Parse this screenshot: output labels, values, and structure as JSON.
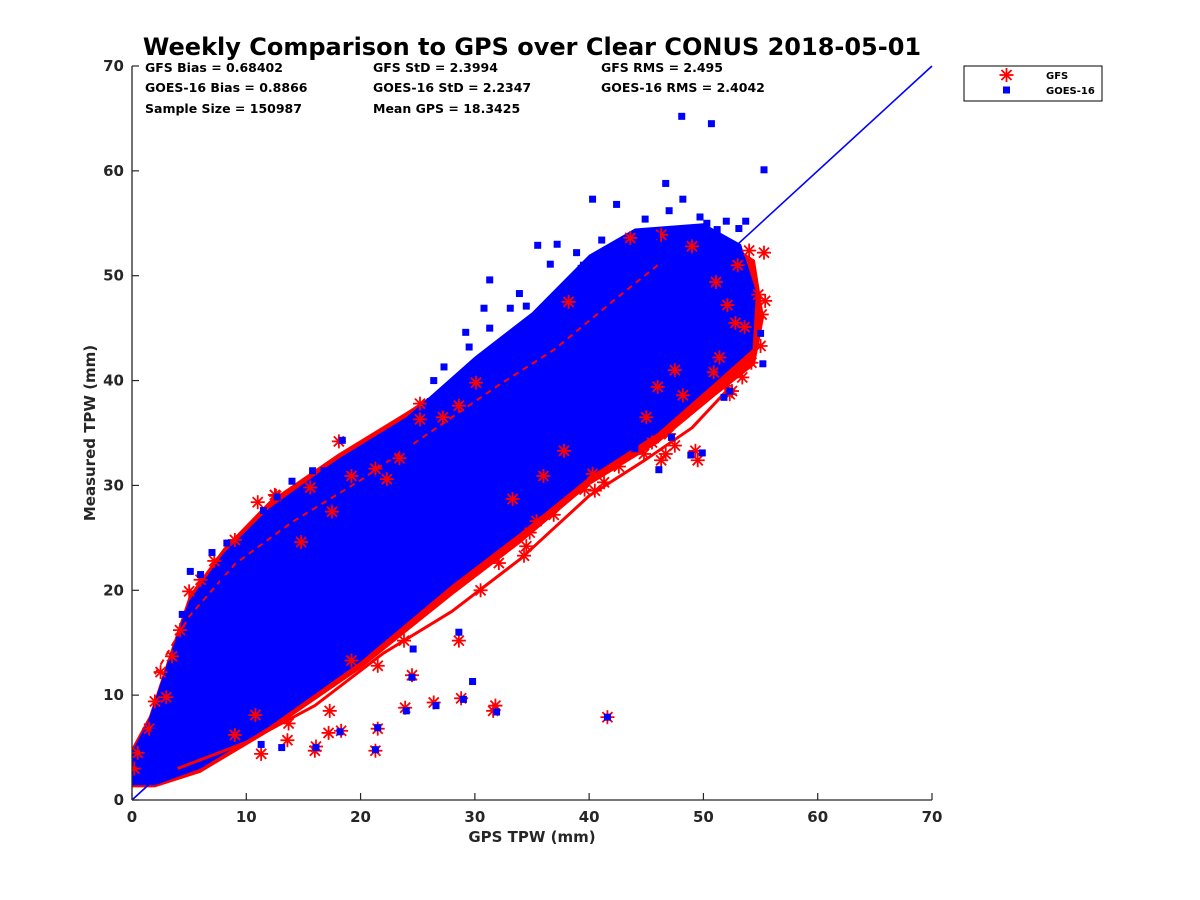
{
  "chart_data": {
    "type": "scatter",
    "title": "Weekly Comparison to GPS over Clear CONUS 2018-05-01",
    "xlabel": "GPS TPW (mm)",
    "ylabel": "Measured TPW (mm)",
    "xlim": [
      0,
      70
    ],
    "ylim": [
      0,
      70
    ],
    "xticks": [
      "0",
      "10",
      "20",
      "30",
      "40",
      "50",
      "60",
      "70"
    ],
    "yticks": [
      "0",
      "10",
      "20",
      "30",
      "40",
      "50",
      "60",
      "70"
    ],
    "stats": [
      [
        "GFS Bias = 0.68402",
        "GFS StD = 2.3994",
        "GFS RMS = 2.495"
      ],
      [
        "GOES-16 Bias = 0.8866",
        "GOES-16 StD = 2.2347",
        "GOES-16 RMS = 2.4042"
      ],
      [
        "Sample Size = 150987",
        "Mean GPS = 18.3425",
        ""
      ]
    ],
    "legend": {
      "placement": "outside-top-right",
      "entries": [
        "GFS",
        "GOES-16"
      ]
    },
    "one_to_one_line": {
      "from": [
        0,
        0
      ],
      "to": [
        70,
        70
      ],
      "color": "#0000ff"
    },
    "series": [
      {
        "name": "GFS",
        "marker": "asterisk",
        "color": "#ff0000",
        "points": [
          [
            18.1,
            34.2
          ],
          [
            25.2,
            37.8
          ],
          [
            25.2,
            36.3
          ],
          [
            11.0,
            28.4
          ],
          [
            12.6,
            29.0
          ],
          [
            15.6,
            29.8
          ],
          [
            28.6,
            37.6
          ],
          [
            21.3,
            31.6
          ],
          [
            7.2,
            22.8
          ],
          [
            5.0,
            19.9
          ],
          [
            2.0,
            9.4
          ],
          [
            3.0,
            9.8
          ],
          [
            1.5,
            6.8
          ],
          [
            0.5,
            4.5
          ],
          [
            0.2,
            3.0
          ],
          [
            12.5,
            29.1
          ],
          [
            14.8,
            24.6
          ],
          [
            17.5,
            27.5
          ],
          [
            19.2,
            30.9
          ],
          [
            22.3,
            30.6
          ],
          [
            24.5,
            11.9
          ],
          [
            26.4,
            9.3
          ],
          [
            28.8,
            9.7
          ],
          [
            31.8,
            9.0
          ],
          [
            31.6,
            8.5
          ],
          [
            28.6,
            15.2
          ],
          [
            21.5,
            12.8
          ],
          [
            18.3,
            6.6
          ],
          [
            17.2,
            6.4
          ],
          [
            17.3,
            8.5
          ],
          [
            16.0,
            4.7
          ],
          [
            16.1,
            5.1
          ],
          [
            21.3,
            4.7
          ],
          [
            21.5,
            6.8
          ],
          [
            23.9,
            8.8
          ],
          [
            11.3,
            4.4
          ],
          [
            13.6,
            5.7
          ],
          [
            13.7,
            7.3
          ],
          [
            10.8,
            8.1
          ],
          [
            9.0,
            6.2
          ],
          [
            23.8,
            15.2
          ],
          [
            19.2,
            13.3
          ],
          [
            32.1,
            22.6
          ],
          [
            34.3,
            23.3
          ],
          [
            34.5,
            24.2
          ],
          [
            34.8,
            25.5
          ],
          [
            35.4,
            26.6
          ],
          [
            36.9,
            27.2
          ],
          [
            39.6,
            29.6
          ],
          [
            40.5,
            29.5
          ],
          [
            40.3,
            31.1
          ],
          [
            41.3,
            30.3
          ],
          [
            42.6,
            31.8
          ],
          [
            44.8,
            33.0
          ],
          [
            45.5,
            34.1
          ],
          [
            46.3,
            32.4
          ],
          [
            46.7,
            33.0
          ],
          [
            47.5,
            33.8
          ],
          [
            49.5,
            32.4
          ],
          [
            49.3,
            33.3
          ],
          [
            47.0,
            34.9
          ],
          [
            52.3,
            38.7
          ],
          [
            52.5,
            39.0
          ],
          [
            51.9,
            39.5
          ],
          [
            53.4,
            40.3
          ],
          [
            54.2,
            41.7
          ],
          [
            55.0,
            43.3
          ],
          [
            55.1,
            46.3
          ],
          [
            55.4,
            47.6
          ],
          [
            54.8,
            48.2
          ],
          [
            55.3,
            52.2
          ],
          [
            54.0,
            52.4
          ],
          [
            53.0,
            51.0
          ],
          [
            51.1,
            49.4
          ],
          [
            52.8,
            45.5
          ],
          [
            52.1,
            47.2
          ],
          [
            53.6,
            45.1
          ],
          [
            50.9,
            40.8
          ],
          [
            48.2,
            38.6
          ],
          [
            41.6,
            7.9
          ],
          [
            33.3,
            28.7
          ],
          [
            36.0,
            30.9
          ],
          [
            37.8,
            33.3
          ],
          [
            45.0,
            36.5
          ],
          [
            46.0,
            39.4
          ],
          [
            47.5,
            41.0
          ],
          [
            51.4,
            42.2
          ],
          [
            43.6,
            53.6
          ],
          [
            46.3,
            53.9
          ],
          [
            49.0,
            52.8
          ],
          [
            38.2,
            47.5
          ],
          [
            30.1,
            39.8
          ],
          [
            27.2,
            36.5
          ],
          [
            23.4,
            32.6
          ],
          [
            9.0,
            24.8
          ],
          [
            6.0,
            21.0
          ],
          [
            4.2,
            16.2
          ],
          [
            2.5,
            12.2
          ],
          [
            3.5,
            13.7
          ],
          [
            30.5,
            20.0
          ]
        ]
      },
      {
        "name": "GOES-16",
        "marker": "square",
        "color": "#0000ff",
        "points": [
          [
            48.1,
            65.2
          ],
          [
            50.7,
            64.5
          ],
          [
            55.3,
            60.1
          ],
          [
            46.7,
            58.8
          ],
          [
            48.2,
            57.3
          ],
          [
            47.0,
            56.2
          ],
          [
            49.7,
            55.6
          ],
          [
            50.3,
            55.0
          ],
          [
            51.2,
            54.4
          ],
          [
            52.0,
            55.2
          ],
          [
            53.1,
            54.5
          ],
          [
            53.7,
            55.2
          ],
          [
            44.9,
            55.4
          ],
          [
            42.4,
            56.8
          ],
          [
            40.3,
            57.3
          ],
          [
            45.9,
            53.8
          ],
          [
            41.1,
            53.4
          ],
          [
            39.3,
            50.7
          ],
          [
            38.9,
            52.2
          ],
          [
            37.2,
            53.0
          ],
          [
            35.5,
            52.9
          ],
          [
            39.5,
            51.0
          ],
          [
            36.6,
            51.1
          ],
          [
            41.9,
            50.5
          ],
          [
            31.3,
            49.6
          ],
          [
            33.9,
            48.3
          ],
          [
            33.1,
            46.9
          ],
          [
            34.5,
            47.1
          ],
          [
            30.8,
            46.9
          ],
          [
            31.3,
            45.0
          ],
          [
            29.2,
            44.6
          ],
          [
            35.3,
            43.7
          ],
          [
            29.5,
            43.2
          ],
          [
            30.7,
            42.3
          ],
          [
            27.3,
            41.3
          ],
          [
            26.4,
            40.0
          ],
          [
            26.1,
            38.0
          ],
          [
            24.0,
            33.4
          ],
          [
            22.5,
            32.8
          ],
          [
            21.9,
            32.3
          ],
          [
            16.8,
            31.4
          ],
          [
            14.0,
            30.4
          ],
          [
            12.7,
            28.9
          ],
          [
            11.5,
            27.6
          ],
          [
            8.3,
            24.5
          ],
          [
            7.0,
            23.6
          ],
          [
            5.1,
            21.8
          ],
          [
            4.4,
            17.7
          ],
          [
            24.6,
            14.4
          ],
          [
            28.6,
            16.0
          ],
          [
            29.8,
            11.3
          ],
          [
            24.5,
            11.7
          ],
          [
            24.0,
            8.5
          ],
          [
            26.6,
            9.0
          ],
          [
            29.0,
            9.6
          ],
          [
            31.9,
            8.4
          ],
          [
            21.5,
            6.9
          ],
          [
            21.3,
            4.8
          ],
          [
            16.1,
            5.0
          ],
          [
            18.2,
            6.5
          ],
          [
            13.1,
            5.0
          ],
          [
            11.3,
            5.3
          ],
          [
            41.6,
            7.9
          ],
          [
            49.9,
            33.1
          ],
          [
            48.9,
            32.9
          ],
          [
            46.1,
            31.5
          ],
          [
            42.9,
            33.5
          ],
          [
            44.0,
            33.5
          ],
          [
            44.9,
            34.9
          ],
          [
            47.2,
            34.6
          ],
          [
            51.8,
            38.4
          ],
          [
            52.3,
            39.0
          ],
          [
            50.4,
            40.0
          ],
          [
            51.6,
            41.0
          ],
          [
            55.2,
            41.6
          ],
          [
            55.0,
            44.5
          ],
          [
            54.1,
            47.3
          ],
          [
            53.7,
            50.0
          ],
          [
            52.0,
            51.5
          ],
          [
            52.8,
            49.8
          ],
          [
            37.8,
            29.9
          ],
          [
            36.0,
            28.6
          ],
          [
            33.0,
            27.3
          ],
          [
            30.1,
            26.2
          ],
          [
            27.4,
            24.8
          ],
          [
            25.9,
            20.5
          ],
          [
            23.3,
            19.1
          ],
          [
            20.1,
            18.0
          ],
          [
            18.4,
            34.3
          ],
          [
            15.8,
            31.4
          ],
          [
            9.4,
            22.1
          ],
          [
            8.0,
            21.1
          ],
          [
            6.8,
            15.9
          ],
          [
            6.0,
            21.5
          ],
          [
            3.8,
            12.0
          ],
          [
            2.0,
            6.5
          ],
          [
            1.0,
            5.0
          ],
          [
            0.6,
            3.5
          ],
          [
            0.3,
            2.0
          ],
          [
            1.5,
            1.8
          ]
        ]
      }
    ]
  }
}
